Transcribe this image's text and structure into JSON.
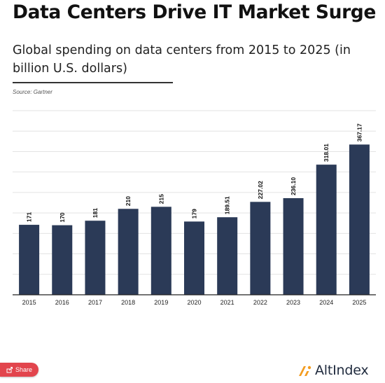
{
  "header": {
    "title": "Data Centers Drive IT Market Surge",
    "subtitle": "Global spending on data centers from 2015 to 2025 (in billion U.S. dollars)",
    "source": "Source: Gartner"
  },
  "chart_data": {
    "type": "bar",
    "title": "",
    "xlabel": "",
    "ylabel": "",
    "categories": [
      "2015",
      "2016",
      "2017",
      "2018",
      "2019",
      "2020",
      "2021",
      "2022",
      "2023",
      "2024",
      "2025"
    ],
    "values": [
      171,
      170,
      181,
      210,
      215,
      179,
      189.51,
      227.02,
      236.1,
      318.01,
      367.17
    ],
    "value_labels": [
      "171",
      "170",
      "181",
      "210",
      "215",
      "179",
      "189.51",
      "227.02",
      "236.10",
      "318.01",
      "367.17"
    ],
    "ylim": [
      0,
      450
    ],
    "grid": true,
    "show_y_tick_labels": false,
    "bar_color": "#2b3a57"
  },
  "footer": {
    "share_label": "Share",
    "brand_name": "AltIndex",
    "brand_color": "#f39c1f"
  },
  "icons": {
    "share": "share-icon",
    "brand": "altindex-logo-icon"
  }
}
